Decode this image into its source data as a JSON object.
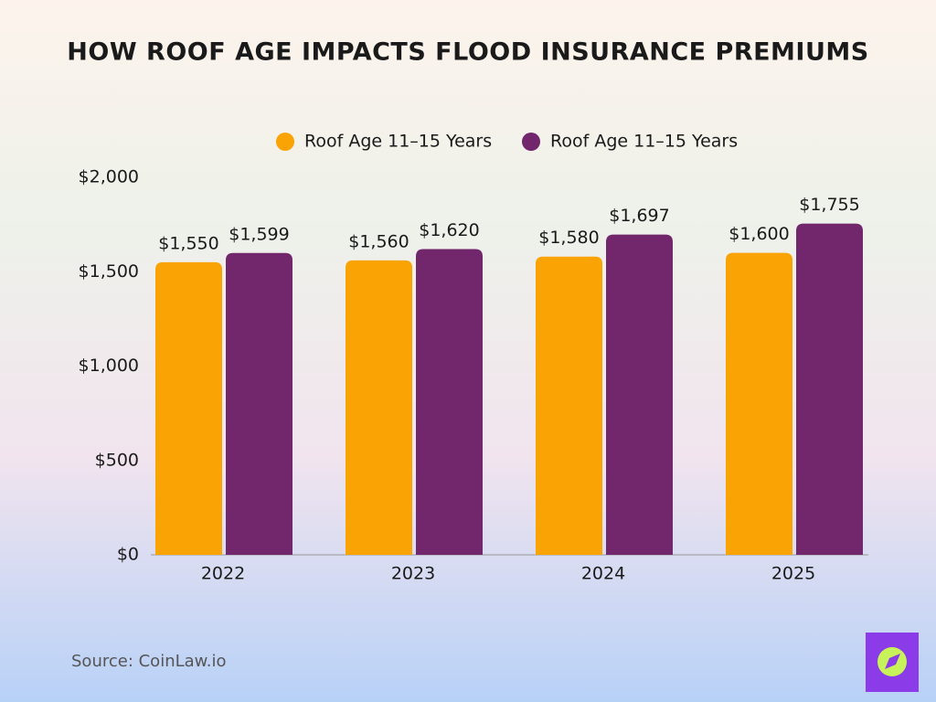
{
  "chart_data": {
    "type": "bar",
    "title": "How Roof Age Impacts Flood Insurance Premiums",
    "categories": [
      "2022",
      "2023",
      "2024",
      "2025"
    ],
    "series": [
      {
        "name": "Roof Age 11–15 Years",
        "color": "#f9a305",
        "values": [
          1550,
          1560,
          1580,
          1600
        ],
        "value_labels": [
          "$1,550",
          "$1,560",
          "$1,580",
          "$1,600"
        ]
      },
      {
        "name": "Roof Age 11–15 Years",
        "color": "#72266b",
        "values": [
          1599,
          1620,
          1697,
          1755
        ],
        "value_labels": [
          "$1,599",
          "$1,620",
          "$1,697",
          "$1,755"
        ]
      }
    ],
    "ylim": [
      0,
      2000
    ],
    "yticks": [
      {
        "value": 0,
        "label": "$0"
      },
      {
        "value": 500,
        "label": "$500"
      },
      {
        "value": 1000,
        "label": "$1,000"
      },
      {
        "value": 1500,
        "label": "$1,500"
      },
      {
        "value": 2000,
        "label": "$2,000"
      }
    ],
    "legend": "top",
    "source": "Source: CoinLaw.io"
  }
}
